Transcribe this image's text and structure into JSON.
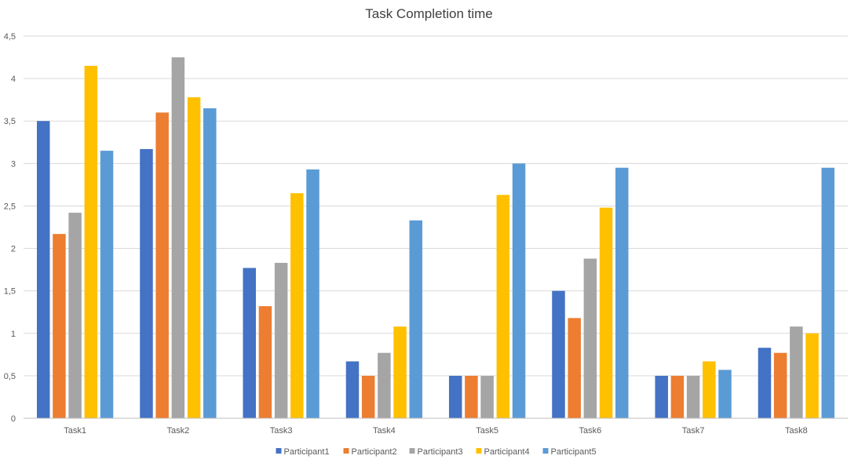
{
  "chart_data": {
    "type": "bar",
    "title": "Task Completion time",
    "xlabel": "",
    "ylabel": "",
    "ylim": [
      0,
      4.5
    ],
    "ytick_step": 0.5,
    "ytick_labels": [
      "0",
      "0,5",
      "1",
      "1,5",
      "2",
      "2,5",
      "3",
      "3,5",
      "4",
      "4,5"
    ],
    "grid": true,
    "legend_position": "bottom",
    "categories": [
      "Task1",
      "Task2",
      "Task3",
      "Task4",
      "Task5",
      "Task6",
      "Task7",
      "Task8"
    ],
    "series": [
      {
        "name": "Participant1",
        "color": "#4472C4",
        "values": [
          3.5,
          3.17,
          1.77,
          0.67,
          0.5,
          1.5,
          0.5,
          0.83
        ]
      },
      {
        "name": "Participant2",
        "color": "#ED7D31",
        "values": [
          2.17,
          3.6,
          1.32,
          0.5,
          0.5,
          1.18,
          0.5,
          0.77
        ]
      },
      {
        "name": "Participant3",
        "color": "#A5A5A5",
        "values": [
          2.42,
          4.25,
          1.83,
          0.77,
          0.5,
          1.88,
          0.5,
          1.08
        ]
      },
      {
        "name": "Participant4",
        "color": "#FFC000",
        "values": [
          4.15,
          3.78,
          2.65,
          1.08,
          2.63,
          2.48,
          0.67,
          1.0
        ]
      },
      {
        "name": "Participant5",
        "color": "#5B9BD5",
        "values": [
          3.15,
          3.65,
          2.93,
          2.33,
          3.0,
          2.95,
          0.57,
          2.95
        ]
      }
    ]
  }
}
